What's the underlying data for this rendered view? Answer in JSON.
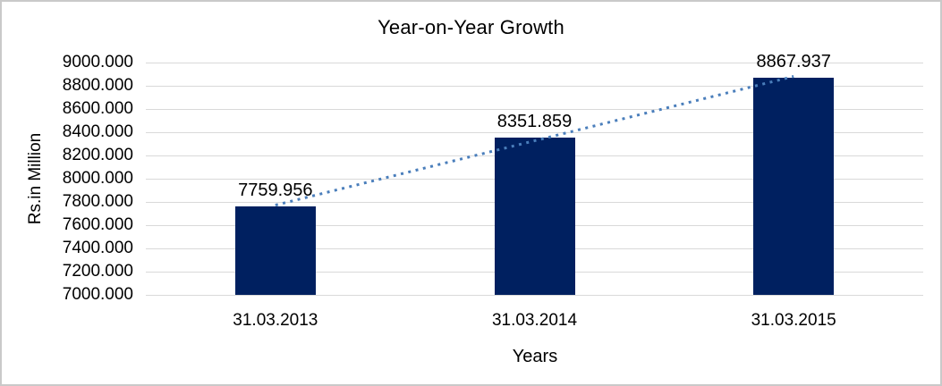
{
  "chart_data": {
    "type": "bar",
    "title": "Year-on-Year Growth",
    "xlabel": "Years",
    "ylabel": "Rs.in Million",
    "categories": [
      "31.03.2013",
      "31.03.2014",
      "31.03.2015"
    ],
    "values": [
      7759.956,
      8351.859,
      8867.937
    ],
    "data_labels": [
      "7759.956",
      "8351.859",
      "8867.937"
    ],
    "ylim": [
      7000,
      9000
    ],
    "ytick_step": 200,
    "ytick_labels": [
      "7000.000",
      "7200.000",
      "7400.000",
      "7600.000",
      "7800.000",
      "8000.000",
      "8200.000",
      "8400.000",
      "8600.000",
      "8800.000",
      "9000.000"
    ],
    "grid": true,
    "legend": false,
    "trendline": true,
    "colors": {
      "bar": "#002060",
      "trendline": "#4a7ebb",
      "gridline": "#d9d9d9",
      "text": "#000000",
      "frame_border": "#c9c9c9"
    }
  }
}
